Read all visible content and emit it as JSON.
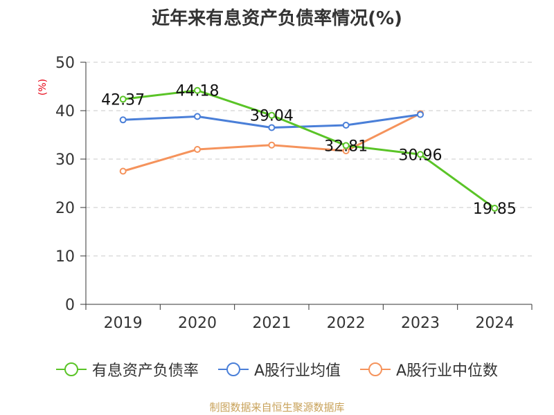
{
  "chart_data": {
    "type": "line",
    "title": "近年来有息资产负债率情况(%)",
    "ylabel": "(%)",
    "xlabel": "",
    "categories": [
      "2019",
      "2020",
      "2021",
      "2022",
      "2023",
      "2024"
    ],
    "ylim": [
      0,
      50
    ],
    "yticks": [
      0,
      10,
      20,
      30,
      40,
      50
    ],
    "grid": true,
    "legend_position": "bottom",
    "series": [
      {
        "name": "有息资产负债率",
        "color": "#5ac427",
        "values": [
          42.37,
          44.18,
          39.04,
          32.81,
          30.96,
          19.85
        ],
        "data_labels": [
          "42.37",
          "44.18",
          "39.04",
          "32.81",
          "30.96",
          "19.85"
        ]
      },
      {
        "name": "A股行业均值",
        "color": "#4a7fd8",
        "values": [
          38.1,
          38.8,
          36.5,
          37.0,
          39.2,
          null
        ]
      },
      {
        "name": "A股行业中位数",
        "color": "#f5935c",
        "values": [
          27.5,
          32.0,
          32.9,
          31.7,
          39.4,
          null
        ]
      }
    ]
  },
  "source": "制图数据来自恒生聚源数据库"
}
